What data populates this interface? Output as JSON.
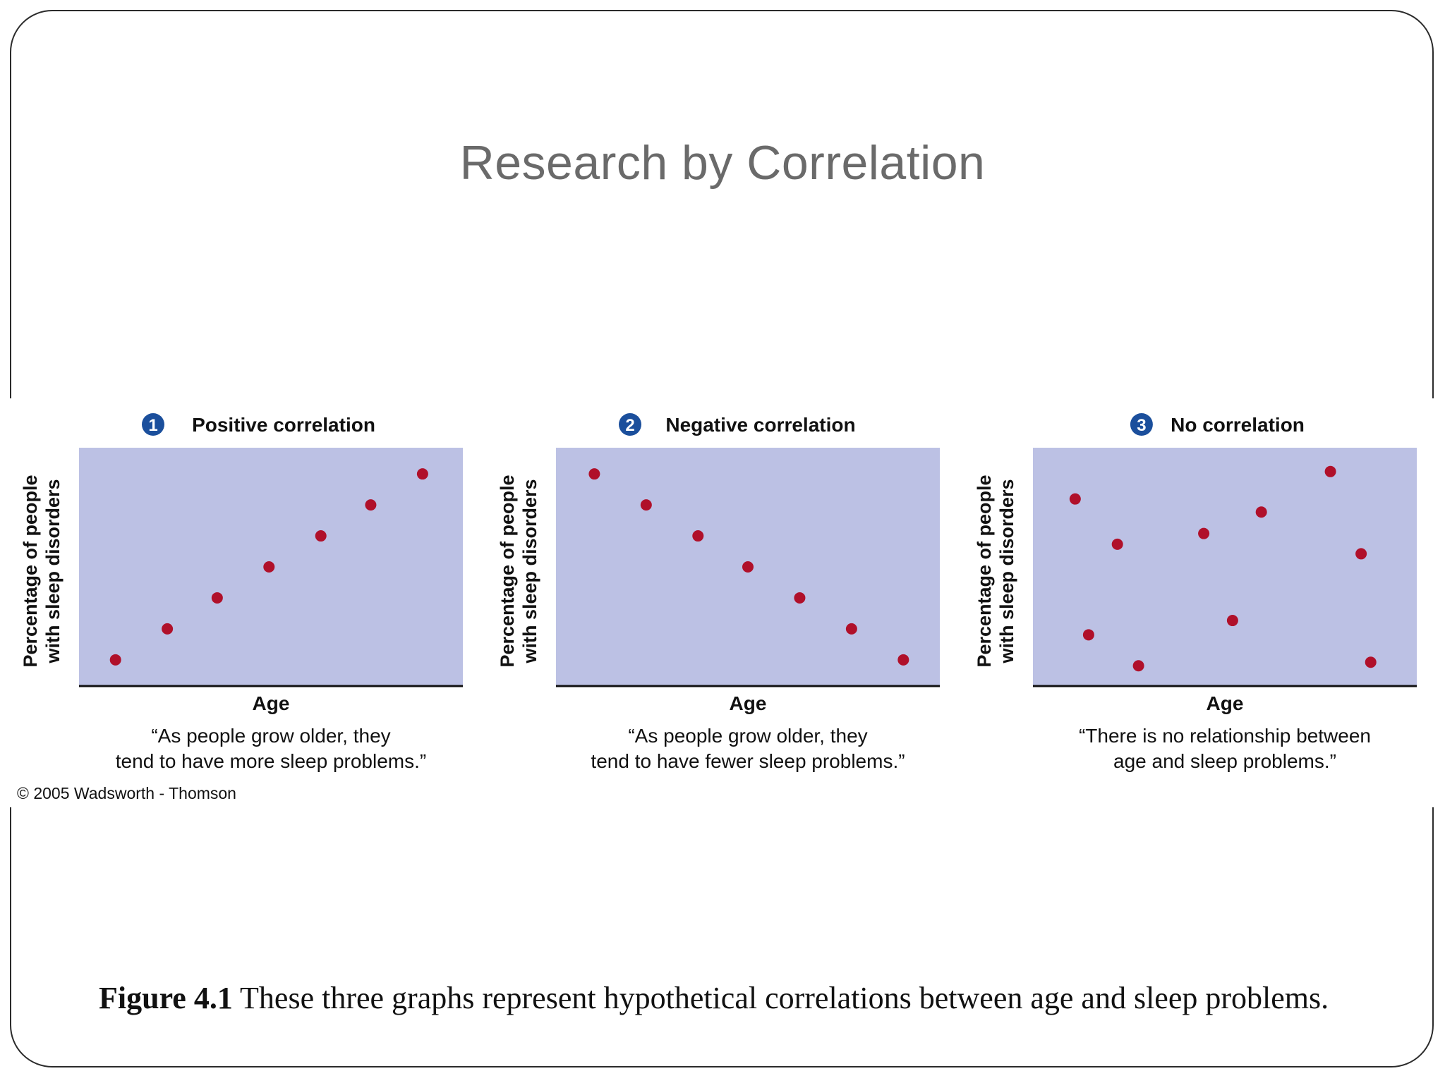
{
  "slide": {
    "title": "Research by Correlation",
    "copyright": "© 2005 Wadsworth - Thomson",
    "caption_label": "Figure 4.1",
    "caption_text": " These three graphs represent hypothetical correlations between age and sleep problems."
  },
  "colors": {
    "panel_fill": "#bcc1e4",
    "point": "#b0102a",
    "number_badge": "#1b4f9c",
    "axis": "#111111"
  },
  "chart_data": [
    {
      "type": "scatter",
      "number": "1",
      "title": "Positive correlation",
      "ylabel_line1": "Percentage of people",
      "ylabel_line2": "with sleep disorders",
      "xlabel": "Age",
      "quote_line1": "“As people grow older, they",
      "quote_line2": "tend to have more sleep problems.”",
      "xlim": [
        0,
        100
      ],
      "ylim": [
        0,
        100
      ],
      "points": [
        {
          "x": 9.5,
          "y": 11
        },
        {
          "x": 23,
          "y": 24
        },
        {
          "x": 36,
          "y": 37
        },
        {
          "x": 49.5,
          "y": 50
        },
        {
          "x": 63,
          "y": 63
        },
        {
          "x": 76,
          "y": 76
        },
        {
          "x": 89.5,
          "y": 89
        }
      ]
    },
    {
      "type": "scatter",
      "number": "2",
      "title": "Negative correlation",
      "ylabel_line1": "Percentage of people",
      "ylabel_line2": "with sleep disorders",
      "xlabel": "Age",
      "quote_line1": "“As people grow older, they",
      "quote_line2": "tend to have fewer sleep problems.”",
      "xlim": [
        0,
        100
      ],
      "ylim": [
        0,
        100
      ],
      "points": [
        {
          "x": 10,
          "y": 89
        },
        {
          "x": 23.5,
          "y": 76
        },
        {
          "x": 37,
          "y": 63
        },
        {
          "x": 50,
          "y": 50
        },
        {
          "x": 63.5,
          "y": 37
        },
        {
          "x": 77,
          "y": 24
        },
        {
          "x": 90.5,
          "y": 11
        }
      ]
    },
    {
      "type": "scatter",
      "number": "3",
      "title": "No correlation",
      "ylabel_line1": "Percentage of people",
      "ylabel_line2": "with sleep disorders",
      "xlabel": "Age",
      "quote_line1": "“There is no relationship between",
      "quote_line2": "age and sleep problems.”",
      "xlim": [
        0,
        100
      ],
      "ylim": [
        0,
        100
      ],
      "points": [
        {
          "x": 11,
          "y": 78.5
        },
        {
          "x": 22,
          "y": 59.5
        },
        {
          "x": 14.5,
          "y": 21.5
        },
        {
          "x": 27.5,
          "y": 8.5
        },
        {
          "x": 44.5,
          "y": 64
        },
        {
          "x": 52,
          "y": 27.5
        },
        {
          "x": 59.5,
          "y": 73
        },
        {
          "x": 77.5,
          "y": 90
        },
        {
          "x": 85.5,
          "y": 55.5
        },
        {
          "x": 88,
          "y": 10
        }
      ]
    }
  ]
}
